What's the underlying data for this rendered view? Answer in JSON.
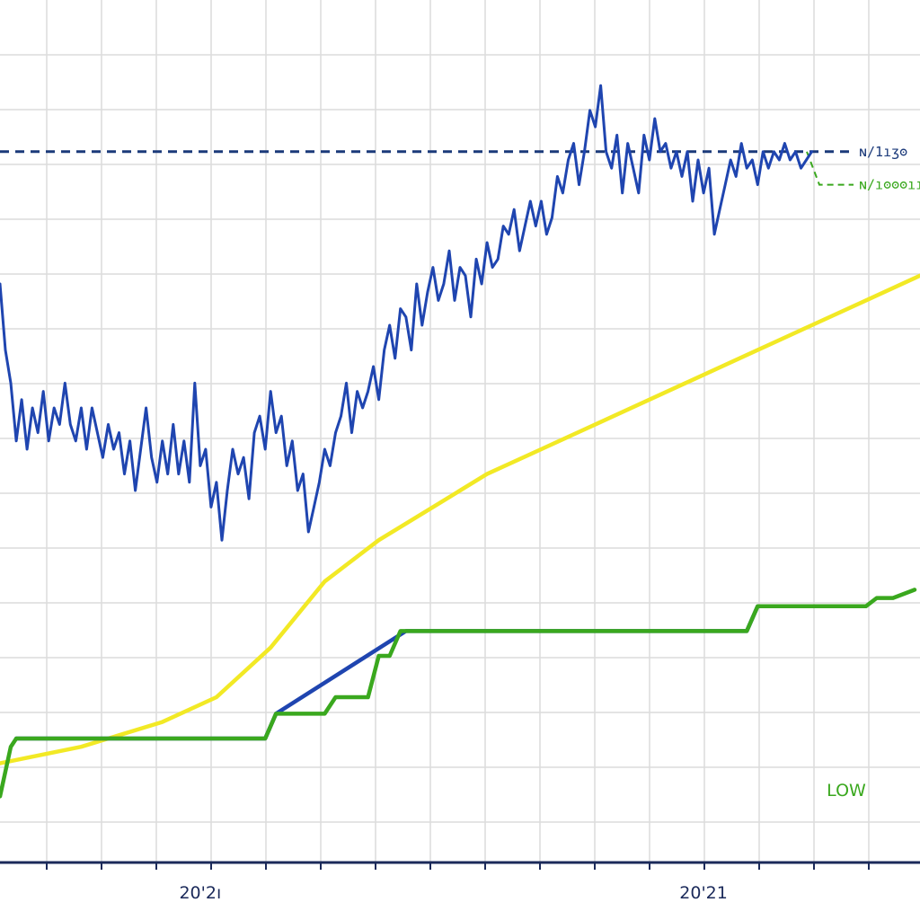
{
  "chart_data": {
    "type": "line",
    "title": "",
    "xlabel": "",
    "ylabel": "",
    "grid": true,
    "x_tick_labels": [
      {
        "label": "20'2ı",
        "x": 37
      },
      {
        "label": "20'21",
        "x": 130
      }
    ],
    "x_range": [
      0,
      170
    ],
    "y_range": [
      0,
      100
    ],
    "reference_lines": [
      {
        "label": "ɴ/1ıʒʘ",
        "value": 86,
        "color": "#1b3a7a",
        "style": "dashed"
      },
      {
        "label": "ɴ/ıʘʘʘıı",
        "value": 82,
        "color": "#3aa81e",
        "style": "dashed"
      }
    ],
    "annotations": [
      {
        "text": "LOW",
        "color": "#3aa81e"
      }
    ],
    "series": [
      {
        "color": "#1f45b0",
        "values": [
          [
            0,
            70
          ],
          [
            1,
            62
          ],
          [
            2,
            58
          ],
          [
            3,
            51
          ],
          [
            4,
            56
          ],
          [
            5,
            50
          ],
          [
            6,
            55
          ],
          [
            7,
            52
          ],
          [
            8,
            57
          ],
          [
            9,
            51
          ],
          [
            10,
            55
          ],
          [
            11,
            53
          ],
          [
            12,
            58
          ],
          [
            13,
            53
          ],
          [
            14,
            51
          ],
          [
            15,
            55
          ],
          [
            16,
            50
          ],
          [
            17,
            55
          ],
          [
            18,
            52
          ],
          [
            19,
            49
          ],
          [
            20,
            53
          ],
          [
            21,
            50
          ],
          [
            22,
            52
          ],
          [
            23,
            47
          ],
          [
            24,
            51
          ],
          [
            25,
            45
          ],
          [
            26,
            50
          ],
          [
            27,
            55
          ],
          [
            28,
            49
          ],
          [
            29,
            46
          ],
          [
            30,
            51
          ],
          [
            31,
            47
          ],
          [
            32,
            53
          ],
          [
            33,
            47
          ],
          [
            34,
            51
          ],
          [
            35,
            46
          ],
          [
            36,
            58
          ],
          [
            37,
            48
          ],
          [
            38,
            50
          ],
          [
            39,
            43
          ],
          [
            40,
            46
          ],
          [
            41,
            39
          ],
          [
            42,
            45
          ],
          [
            43,
            50
          ],
          [
            44,
            47
          ],
          [
            45,
            49
          ],
          [
            46,
            44
          ],
          [
            47,
            52
          ],
          [
            48,
            54
          ],
          [
            49,
            50
          ],
          [
            50,
            57
          ],
          [
            51,
            52
          ],
          [
            52,
            54
          ],
          [
            53,
            48
          ],
          [
            54,
            51
          ],
          [
            55,
            45
          ],
          [
            56,
            47
          ],
          [
            57,
            40
          ],
          [
            58,
            43
          ],
          [
            59,
            46
          ],
          [
            60,
            50
          ],
          [
            61,
            48
          ],
          [
            62,
            52
          ],
          [
            63,
            54
          ],
          [
            64,
            58
          ],
          [
            65,
            52
          ],
          [
            66,
            57
          ],
          [
            67,
            55
          ],
          [
            68,
            57
          ],
          [
            69,
            60
          ],
          [
            70,
            56
          ],
          [
            71,
            62
          ],
          [
            72,
            65
          ],
          [
            73,
            61
          ],
          [
            74,
            67
          ],
          [
            75,
            66
          ],
          [
            76,
            62
          ],
          [
            77,
            70
          ],
          [
            78,
            65
          ],
          [
            79,
            69
          ],
          [
            80,
            72
          ],
          [
            81,
            68
          ],
          [
            82,
            70
          ],
          [
            83,
            74
          ],
          [
            84,
            68
          ],
          [
            85,
            72
          ],
          [
            86,
            71
          ],
          [
            87,
            66
          ],
          [
            88,
            73
          ],
          [
            89,
            70
          ],
          [
            90,
            75
          ],
          [
            91,
            72
          ],
          [
            92,
            73
          ],
          [
            93,
            77
          ],
          [
            94,
            76
          ],
          [
            95,
            79
          ],
          [
            96,
            74
          ],
          [
            97,
            77
          ],
          [
            98,
            80
          ],
          [
            99,
            77
          ],
          [
            100,
            80
          ],
          [
            101,
            76
          ],
          [
            102,
            78
          ],
          [
            103,
            83
          ],
          [
            104,
            81
          ],
          [
            105,
            85
          ],
          [
            106,
            87
          ],
          [
            107,
            82
          ],
          [
            108,
            86
          ],
          [
            109,
            91
          ],
          [
            110,
            89
          ],
          [
            111,
            94
          ],
          [
            112,
            86
          ],
          [
            113,
            84
          ],
          [
            114,
            88
          ],
          [
            115,
            81
          ],
          [
            116,
            87
          ],
          [
            117,
            84
          ],
          [
            118,
            81
          ],
          [
            119,
            88
          ],
          [
            120,
            85
          ],
          [
            121,
            90
          ],
          [
            122,
            86
          ],
          [
            123,
            87
          ],
          [
            124,
            84
          ],
          [
            125,
            86
          ],
          [
            126,
            83
          ],
          [
            127,
            86
          ],
          [
            128,
            80
          ],
          [
            129,
            85
          ],
          [
            130,
            81
          ],
          [
            131,
            84
          ],
          [
            132,
            76
          ],
          [
            133,
            79
          ],
          [
            134,
            82
          ],
          [
            135,
            85
          ],
          [
            136,
            83
          ],
          [
            137,
            87
          ],
          [
            138,
            84
          ],
          [
            139,
            85
          ],
          [
            140,
            82
          ],
          [
            141,
            86
          ],
          [
            142,
            84
          ],
          [
            143,
            86
          ],
          [
            144,
            85
          ],
          [
            145,
            87
          ],
          [
            146,
            85
          ],
          [
            147,
            86
          ],
          [
            148,
            84
          ],
          [
            149,
            85
          ],
          [
            150,
            86
          ]
        ]
      },
      {
        "color": "#f2e925",
        "values": [
          [
            0,
            12
          ],
          [
            15,
            14
          ],
          [
            30,
            17
          ],
          [
            40,
            20
          ],
          [
            50,
            26
          ],
          [
            60,
            34
          ],
          [
            70,
            39
          ],
          [
            80,
            43
          ],
          [
            90,
            47
          ],
          [
            100,
            50
          ],
          [
            110,
            53
          ],
          [
            120,
            56
          ],
          [
            130,
            59
          ],
          [
            140,
            62
          ],
          [
            150,
            65
          ],
          [
            160,
            68
          ],
          [
            170,
            71
          ]
        ]
      },
      {
        "color": "#1f45b0",
        "values": [
          [
            3,
            15
          ],
          [
            49,
            15
          ],
          [
            51,
            18
          ],
          [
            75,
            28
          ],
          [
            138,
            28
          ],
          [
            140,
            31
          ]
        ]
      },
      {
        "color": "#3aa81e",
        "values": [
          [
            0,
            8
          ],
          [
            2,
            14
          ],
          [
            3,
            15
          ],
          [
            49,
            15
          ],
          [
            51,
            18
          ],
          [
            60,
            18
          ],
          [
            62,
            20
          ],
          [
            68,
            20
          ],
          [
            70,
            25
          ],
          [
            72,
            25
          ],
          [
            74,
            28
          ],
          [
            75,
            28
          ],
          [
            138,
            28
          ],
          [
            140,
            31
          ],
          [
            160,
            31
          ],
          [
            162,
            32
          ],
          [
            165,
            32
          ],
          [
            169,
            33
          ]
        ]
      }
    ]
  }
}
